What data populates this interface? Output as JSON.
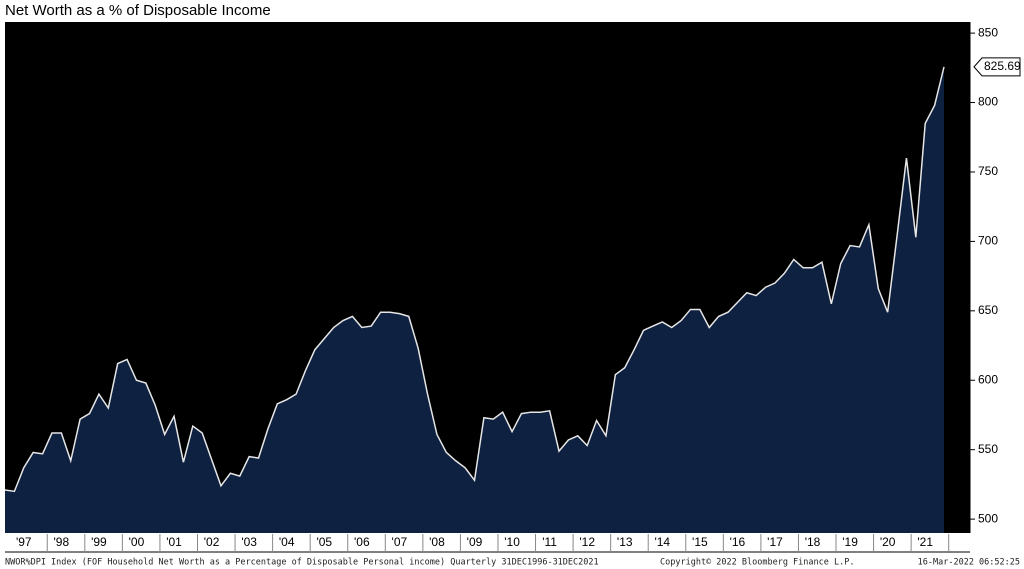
{
  "chart_data": {
    "type": "area",
    "title": "Net Worth as a % of Disposable Income",
    "categories": [
      null,
      null,
      "'97",
      null,
      null,
      null,
      "'98",
      null,
      null,
      null,
      "'99",
      null,
      null,
      null,
      "'00",
      null,
      null,
      null,
      "'01",
      null,
      null,
      null,
      "'02",
      null,
      null,
      null,
      "'03",
      null,
      null,
      null,
      "'04",
      null,
      null,
      null,
      "'05",
      null,
      null,
      null,
      "'06",
      null,
      null,
      null,
      "'07",
      null,
      null,
      null,
      "'08",
      null,
      null,
      null,
      "'09",
      null,
      null,
      null,
      "'10",
      null,
      null,
      null,
      "'11",
      null,
      null,
      null,
      "'12",
      null,
      null,
      null,
      "'13",
      null,
      null,
      null,
      "'14",
      null,
      null,
      null,
      "'15",
      null,
      null,
      null,
      "'16",
      null,
      null,
      null,
      "'17",
      null,
      null,
      null,
      "'18",
      null,
      null,
      null,
      "'19",
      null,
      null,
      null,
      "'20",
      null,
      null,
      null,
      "'21",
      null,
      null
    ],
    "series": [
      {
        "color": "#0f2140",
        "line_color": "#e6e6e6",
        "values": [
          521,
          520,
          537,
          548,
          547,
          562,
          562,
          542,
          572,
          576,
          590,
          580,
          612,
          615,
          600,
          598,
          582,
          561,
          574,
          541,
          567,
          562,
          543,
          524,
          533,
          531,
          545,
          544,
          565,
          583,
          586,
          590,
          607,
          622,
          630,
          638,
          643,
          646,
          638,
          639,
          649,
          649,
          648,
          646,
          623,
          590,
          561,
          548,
          542,
          537,
          528,
          573,
          572,
          577,
          563,
          576,
          577,
          577,
          578,
          549,
          557,
          560,
          553,
          571,
          560,
          604,
          609,
          622,
          636,
          639,
          642,
          638,
          643,
          651,
          651,
          638,
          646,
          649,
          656,
          663,
          661,
          667,
          670,
          677,
          687,
          681,
          681,
          685,
          655,
          684,
          697,
          696,
          712,
          666,
          649,
          704,
          760,
          703,
          785,
          798,
          825.69
        ]
      }
    ],
    "ylim": [
      490,
      858
    ],
    "yticks": [
      500,
      550,
      600,
      650,
      700,
      750,
      800,
      850
    ],
    "axis_side": "right",
    "grid": false,
    "footnotes": [
      "NWOR%DPI Index (FOF Household Net Worth as a Percentage of Disposable Personal income)  Quarterly 31DEC1996-31DEC2021",
      "Copyright© 2022 Bloomberg Finance L.P.",
      "16-Mar-2022 06:52:25"
    ]
  }
}
